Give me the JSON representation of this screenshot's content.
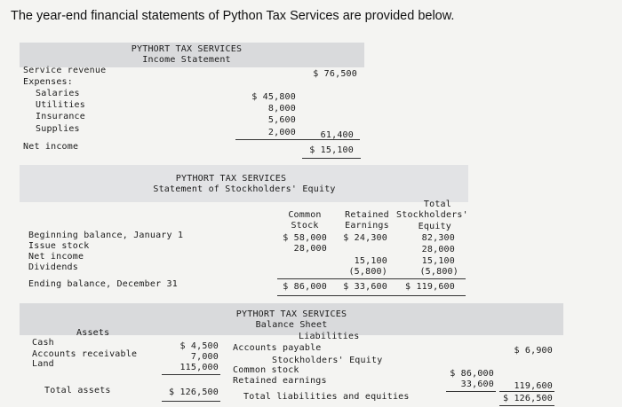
{
  "intro": "The year-end financial statements of Python Tax Services are provided below.",
  "income_statement": {
    "company": "PYTHORT TAX SERVICES",
    "title": "Income Statement",
    "service_revenue_label": "Service revenue",
    "service_revenue": "$ 76,500",
    "expenses_label": "Expenses:",
    "expenses": [
      {
        "label": "Salaries",
        "amount": "$ 45,800"
      },
      {
        "label": "Utilities",
        "amount": "8,000"
      },
      {
        "label": "Insurance",
        "amount": "5,600"
      },
      {
        "label": "Supplies",
        "amount": "2,000"
      }
    ],
    "total_expenses": "61,400",
    "net_income_label": "Net income",
    "net_income": "$ 15,100"
  },
  "equity_statement": {
    "company": "PYTHORT TAX SERVICES",
    "title": "Statement of Stockholders' Equity",
    "col_common": [
      "Common",
      "Stock"
    ],
    "col_retained": [
      "Retained",
      "Earnings"
    ],
    "col_total": [
      "Total",
      "Stockholders'",
      "Equity"
    ],
    "rows": [
      {
        "label": "Beginning balance, January 1",
        "common": "$ 58,000",
        "retained": "$ 24,300",
        "total": "82,300"
      },
      {
        "label": "Issue stock",
        "common": "28,000",
        "retained": "",
        "total": "28,000"
      },
      {
        "label": "Net income",
        "common": "",
        "retained": "15,100",
        "total": "15,100"
      },
      {
        "label": "Dividends",
        "common": "",
        "retained": "(5,800)",
        "total": "(5,800)"
      },
      {
        "label": "Ending balance, December 31",
        "common": "$ 86,000",
        "retained": "$ 33,600",
        "total": "$ 119,600"
      }
    ]
  },
  "balance_sheet": {
    "company": "PYTHORT TAX SERVICES",
    "title": "Balance Sheet",
    "assets_header": "Assets",
    "assets": [
      {
        "label": "Cash",
        "amount": "$ 4,500"
      },
      {
        "label": "Accounts receivable",
        "amount": "7,000"
      },
      {
        "label": "Land",
        "amount": "115,000"
      }
    ],
    "total_assets_label": "Total assets",
    "total_assets": "$ 126,500",
    "liabilities_header": "Liabilities",
    "accounts_payable_label": "Accounts payable",
    "accounts_payable": "$ 6,900",
    "equity_header": "Stockholders' Equity",
    "common_stock_label": "Common stock",
    "common_stock": "$ 86,000",
    "retained_earnings_label": "Retained earnings",
    "retained_earnings": "33,600",
    "total_equity": "119,600",
    "total_le_label": "Total liabilities and equities",
    "total_le": "$ 126,500"
  }
}
